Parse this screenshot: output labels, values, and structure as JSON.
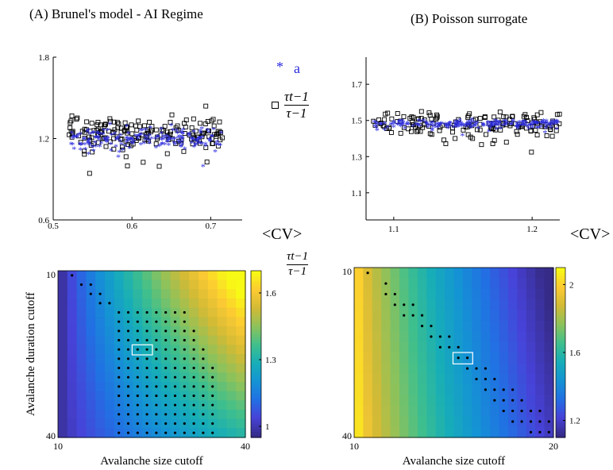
{
  "panel_a_title": "(A) Brunel's model - AI Regime",
  "panel_b_title": "(B) Poisson surrogate",
  "legend": {
    "a_label": "a",
    "ratio_numerator": "τt−1",
    "ratio_denominator": "τ−1"
  },
  "cv_label": "<CV>",
  "heatmap_colorbar_label": {
    "numerator": "τt−1",
    "denominator": "τ−1"
  },
  "colors": {
    "asterisk": "#2b2bdf",
    "square": "#000000",
    "dot": "#000000",
    "highlight": "#ffffff"
  },
  "chart_data": [
    {
      "id": "A-scatter",
      "type": "scatter",
      "title": "",
      "xlabel": "<CV>",
      "ylabel": "",
      "xlim": [
        0.5,
        0.74
      ],
      "ylim": [
        0.6,
        1.8
      ],
      "xticks": [
        {
          "v": 0.5,
          "label": "0.5"
        },
        {
          "v": 0.6,
          "label": "0.6"
        },
        {
          "v": 0.7,
          "label": "0.7"
        }
      ],
      "yticks": [
        {
          "v": 0.6,
          "label": "0.6"
        },
        {
          "v": 1.2,
          "label": "1.2"
        },
        {
          "v": 1.8,
          "label": "1.8"
        }
      ],
      "series": [
        {
          "name": "a",
          "marker": "asterisk",
          "x_range": [
            0.52,
            0.715
          ],
          "y_center": 1.2,
          "y_spread": 0.09,
          "n": 190
        },
        {
          "name": "τt−1 / τ−1",
          "marker": "square",
          "x_range": [
            0.52,
            0.715
          ],
          "y_center": 1.25,
          "y_spread": 0.14,
          "n": 190
        }
      ],
      "grid": false
    },
    {
      "id": "B-scatter",
      "type": "scatter",
      "title": "",
      "xlabel": "<CV>",
      "ylabel": "",
      "xlim": [
        1.08,
        1.22
      ],
      "ylim": [
        0.95,
        1.85
      ],
      "xticks": [
        {
          "v": 1.1,
          "label": "1.1"
        },
        {
          "v": 1.2,
          "label": "1.2"
        }
      ],
      "yticks": [
        {
          "v": 1.1,
          "label": "1.1"
        },
        {
          "v": 1.3,
          "label": "1.3"
        },
        {
          "v": 1.5,
          "label": "1.5"
        },
        {
          "v": 1.7,
          "label": "1.7"
        }
      ],
      "series": [
        {
          "name": "a",
          "marker": "asterisk",
          "x_range": [
            1.085,
            1.22
          ],
          "y_center": 1.48,
          "y_spread": 0.025,
          "n": 200
        },
        {
          "name": "τt−1 / τ−1",
          "marker": "square",
          "x_range": [
            1.085,
            1.22
          ],
          "y_center": 1.48,
          "y_spread": 0.07,
          "n": 160
        }
      ],
      "grid": false
    },
    {
      "id": "A-heatmap",
      "type": "heatmap",
      "title": "",
      "xlabel": "Avalanche size cutoff",
      "ylabel": "Avalanche duration cutoff",
      "x_range": [
        10,
        40
      ],
      "y_range": [
        10,
        40
      ],
      "xticks": [
        {
          "v": 10,
          "label": "10"
        },
        {
          "v": 40,
          "label": "40"
        }
      ],
      "yticks": [
        {
          "v": 10,
          "label": "10"
        },
        {
          "v": 40,
          "label": "40"
        }
      ],
      "color_range": [
        0.95,
        1.7
      ],
      "colorbar_ticks": [
        {
          "v": 1.0,
          "label": "1"
        },
        {
          "v": 1.3,
          "label": "1.3"
        },
        {
          "v": 1.6,
          "label": "1.6"
        }
      ],
      "highlight_cell": {
        "size_cutoff": 22,
        "duration_cutoff": 24
      },
      "significant_cells": "dots"
    },
    {
      "id": "B-heatmap",
      "type": "heatmap",
      "title": "",
      "xlabel": "Avalanche size cutoff",
      "ylabel": "",
      "x_range": [
        10,
        20
      ],
      "y_range": [
        10,
        40
      ],
      "xticks": [
        {
          "v": 10,
          "label": "10"
        },
        {
          "v": 20,
          "label": "20"
        }
      ],
      "yticks": [
        {
          "v": 10,
          "label": "10"
        },
        {
          "v": 40,
          "label": "40"
        }
      ],
      "color_range": [
        1.1,
        2.1
      ],
      "colorbar_ticks": [
        {
          "v": 1.2,
          "label": "1.2"
        },
        {
          "v": 1.6,
          "label": "1.6"
        },
        {
          "v": 2.0,
          "label": "2"
        }
      ],
      "highlight_cell": {
        "size_cutoff": 15,
        "duration_cutoff": 25
      },
      "significant_cells": "diagonal-dots"
    }
  ]
}
